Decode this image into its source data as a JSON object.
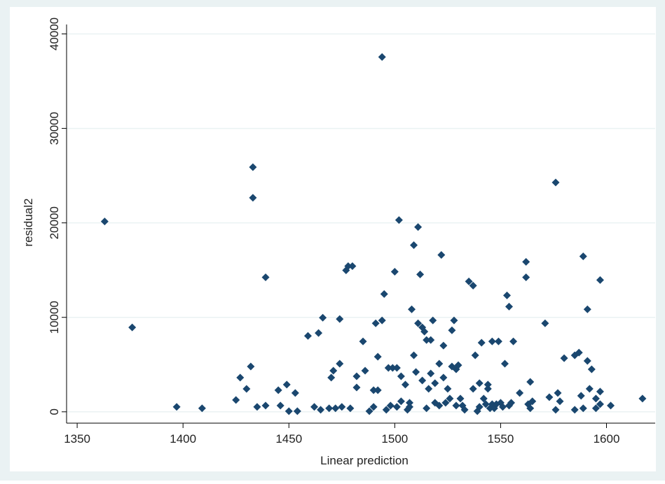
{
  "chart_data": {
    "type": "scatter",
    "xlabel": "Linear prediction",
    "ylabel": "residual2",
    "x": [
      1363,
      1376,
      1397,
      1409,
      1425,
      1427,
      1430,
      1432,
      1433,
      1433,
      1435,
      1439,
      1439,
      1445,
      1446,
      1449,
      1450,
      1453,
      1454,
      1459,
      1462,
      1464,
      1465,
      1466,
      1469,
      1470,
      1471,
      1472,
      1474,
      1474,
      1475,
      1477,
      1478,
      1479,
      1480,
      1482,
      1482,
      1485,
      1486,
      1488,
      1490,
      1490,
      1491,
      1492,
      1492,
      1494,
      1494,
      1495,
      1496,
      1497,
      1498,
      1499,
      1500,
      1501,
      1501,
      1502,
      1503,
      1503,
      1505,
      1506,
      1507,
      1507,
      1508,
      1509,
      1509,
      1510,
      1511,
      1511,
      1512,
      1513,
      1513,
      1514,
      1515,
      1515,
      1516,
      1517,
      1517,
      1518,
      1519,
      1519,
      1521,
      1521,
      1522,
      1523,
      1523,
      1524,
      1525,
      1526,
      1527,
      1527,
      1528,
      1529,
      1529,
      1530,
      1531,
      1532,
      1533,
      1535,
      1537,
      1537,
      1538,
      1539,
      1540,
      1540,
      1541,
      1542,
      1543,
      1544,
      1544,
      1545,
      1546,
      1546,
      1547,
      1548,
      1549,
      1550,
      1551,
      1552,
      1553,
      1554,
      1554,
      1555,
      1556,
      1559,
      1562,
      1562,
      1563,
      1564,
      1564,
      1565,
      1571,
      1573,
      1576,
      1576,
      1577,
      1578,
      1580,
      1585,
      1585,
      1587,
      1588,
      1589,
      1589,
      1591,
      1591,
      1592,
      1593,
      1595,
      1595,
      1597,
      1597,
      1597,
      1602,
      1617
    ],
    "values": [
      20150,
      8930,
      520,
      370,
      1250,
      3620,
      2430,
      4800,
      25900,
      22660,
      520,
      660,
      14240,
      2290,
      660,
      2880,
      70,
      1990,
      70,
      8040,
      520,
      8340,
      220,
      9960,
      370,
      3620,
      4350,
      370,
      9820,
      5090,
      520,
      14980,
      15420,
      370,
      15420,
      2580,
      3760,
      7450,
      4350,
      70,
      520,
      2290,
      9370,
      2290,
      5830,
      37560,
      9670,
      12470,
      220,
      4650,
      660,
      4650,
      14830,
      520,
      4650,
      20300,
      3760,
      1110,
      2880,
      220,
      520,
      960,
      10850,
      17640,
      5980,
      4210,
      9370,
      19560,
      14540,
      3320,
      8930,
      8490,
      7600,
      370,
      2440,
      7600,
      4060,
      9670,
      3030,
      960,
      660,
      5090,
      16610,
      3620,
      7010,
      960,
      2440,
      1400,
      8630,
      4800,
      9670,
      4500,
      660,
      4940,
      1400,
      660,
      220,
      13800,
      2440,
      13360,
      5980,
      70,
      3030,
      520,
      7310,
      1400,
      810,
      2440,
      2880,
      370,
      7450,
      810,
      370,
      810,
      7450,
      960,
      520,
      5090,
      12320,
      11140,
      660,
      960,
      7450,
      1990,
      15870,
      14240,
      810,
      3170,
      370,
      1110,
      9370,
      1550,
      24280,
      220,
      1990,
      1110,
      5680,
      220,
      5980,
      6270,
      1700,
      370,
      16460,
      5390,
      10850,
      2440,
      4500,
      370,
      1400,
      810,
      2140,
      13950,
      660,
      1400
    ],
    "color": "#1a476f",
    "xlim": [
      1345,
      1623
    ],
    "ylim": [
      -1200,
      41000
    ],
    "xticks": [
      1350,
      1400,
      1450,
      1500,
      1550,
      1600
    ],
    "yticks": [
      0,
      10000,
      20000,
      30000,
      40000
    ],
    "grid": true
  }
}
